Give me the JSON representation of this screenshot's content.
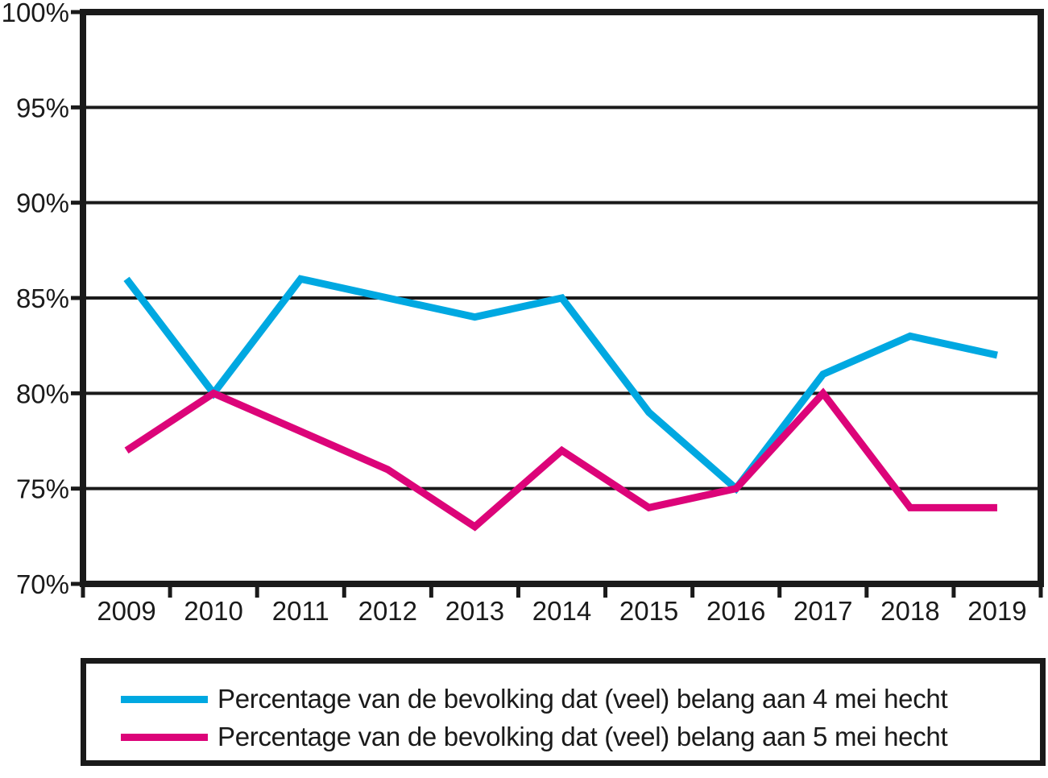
{
  "chart_data": {
    "type": "line",
    "title": "",
    "xlabel": "",
    "ylabel": "",
    "x": [
      "2009",
      "2010",
      "2011",
      "2012",
      "2013",
      "2014",
      "2015",
      "2016",
      "2017",
      "2018",
      "2019"
    ],
    "series": [
      {
        "name": "Percentage van de bevolking dat (veel) belang aan 4 mei hecht",
        "color": "#00A8E1",
        "values": [
          86,
          80,
          86,
          85,
          84,
          85,
          79,
          75,
          81,
          83,
          82
        ]
      },
      {
        "name": "Percentage van de bevolking dat (veel) belang aan 5 mei hecht",
        "color": "#DC0479",
        "values": [
          77,
          80,
          78,
          76,
          73,
          77,
          74,
          75,
          80,
          74,
          74
        ]
      }
    ],
    "unit": "%",
    "ylim": [
      70,
      100
    ],
    "yticks": [
      {
        "value": 70,
        "label": "70%"
      },
      {
        "value": 75,
        "label": "75%"
      },
      {
        "value": 80,
        "label": "80%"
      },
      {
        "value": 85,
        "label": "85%"
      },
      {
        "value": 90,
        "label": "90%"
      },
      {
        "value": 95,
        "label": "95%"
      },
      {
        "value": 100,
        "label": "100%"
      }
    ],
    "grid": "horizontal",
    "legend_position": "bottom",
    "frame_color": "#1A1A1A",
    "background": "#FFFFFF"
  }
}
